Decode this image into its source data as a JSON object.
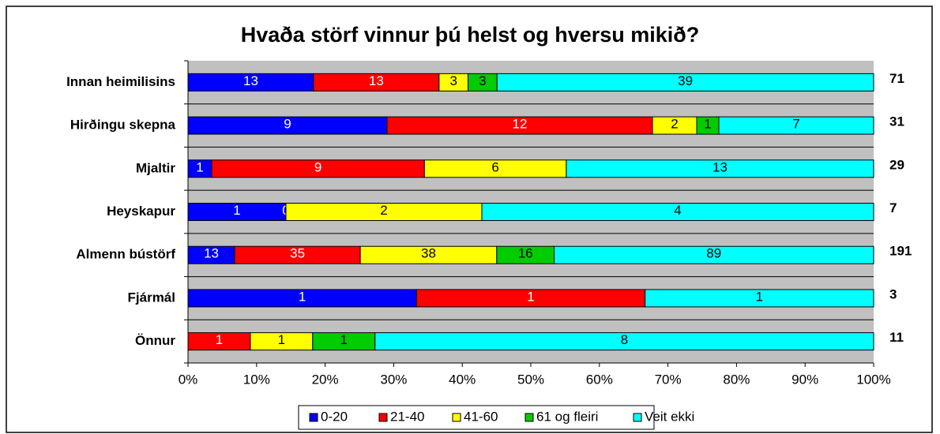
{
  "chart_data": {
    "type": "stacked-bar-100",
    "title": "Hvaða störf vinnur þú helst og hversu mikið?",
    "categories": [
      "Innan heimilisins",
      "Hirðingu skepna",
      "Mjaltir",
      "Heyskapur",
      "Almenn bústörf",
      "Fjármál",
      "Önnur"
    ],
    "totals": [
      71,
      31,
      29,
      7,
      191,
      3,
      11
    ],
    "series": [
      {
        "name": "0-20",
        "color": "#0000ff",
        "values": [
          13,
          9,
          1,
          1,
          13,
          1,
          null
        ]
      },
      {
        "name": "21-40",
        "color": "#ff0000",
        "values": [
          13,
          12,
          9,
          0,
          35,
          1,
          1
        ]
      },
      {
        "name": "41-60",
        "color": "#ffff00",
        "values": [
          3,
          2,
          6,
          2,
          38,
          null,
          1
        ]
      },
      {
        "name": "61 og fleiri",
        "color": "#00cc00",
        "values": [
          3,
          1,
          null,
          null,
          16,
          null,
          1
        ]
      },
      {
        "name": "Veit ekki",
        "color": "#00ffff",
        "values": [
          39,
          7,
          13,
          4,
          89,
          1,
          8
        ]
      }
    ],
    "xlim": [
      0,
      100
    ],
    "xticks": [
      {
        "value": 0,
        "label": "0%"
      },
      {
        "value": 10,
        "label": "10%"
      },
      {
        "value": 20,
        "label": "20%"
      },
      {
        "value": 30,
        "label": "30%"
      },
      {
        "value": 40,
        "label": "40%"
      },
      {
        "value": 50,
        "label": "50%"
      },
      {
        "value": 60,
        "label": "60%"
      },
      {
        "value": 70,
        "label": "70%"
      },
      {
        "value": 80,
        "label": "80%"
      },
      {
        "value": 90,
        "label": "90%"
      },
      {
        "value": 100,
        "label": "100%"
      }
    ],
    "legend": "bottom"
  }
}
